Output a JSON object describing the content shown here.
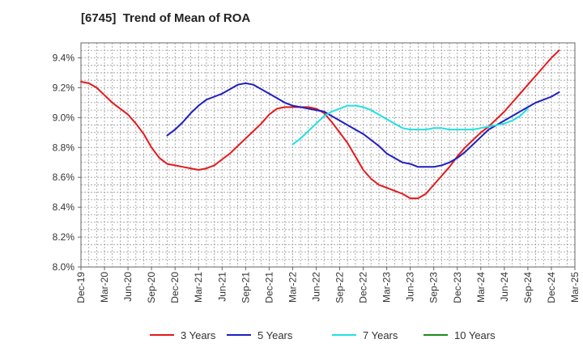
{
  "chart_data": {
    "type": "line",
    "title": "[6745]  Trend of Mean of ROA",
    "x_ticks": [
      "Dec-19",
      "Mar-20",
      "Jun-20",
      "Sep-20",
      "Dec-20",
      "Mar-21",
      "Jun-21",
      "Sep-21",
      "Dec-21",
      "Mar-22",
      "Jun-22",
      "Sep-22",
      "Dec-22",
      "Mar-23",
      "Jun-23",
      "Sep-23",
      "Dec-23",
      "Mar-24",
      "Jun-24",
      "Sep-24",
      "Dec-24",
      "Mar-25"
    ],
    "y_ticks": [
      "8.0%",
      "8.2%",
      "8.4%",
      "8.6%",
      "8.8%",
      "9.0%",
      "9.2%",
      "9.4%"
    ],
    "ylim": [
      8.0,
      9.5
    ],
    "grid": true,
    "legend_position": "bottom",
    "series": [
      {
        "name": "3 Years",
        "color": "#e31a1c",
        "values": [
          9.24,
          9.23,
          9.2,
          9.15,
          9.1,
          9.06,
          9.02,
          8.96,
          8.89,
          8.8,
          8.73,
          8.69,
          8.68,
          8.67,
          8.66,
          8.65,
          8.66,
          8.68,
          8.72,
          8.76,
          8.81,
          8.86,
          8.91,
          8.96,
          9.02,
          9.06,
          9.07,
          9.07,
          9.07,
          9.07,
          9.06,
          9.03,
          8.97,
          8.9,
          8.83,
          8.74,
          8.65,
          8.59,
          8.55,
          8.53,
          8.51,
          8.49,
          8.46,
          8.46,
          8.49,
          8.55,
          8.61,
          8.67,
          8.74,
          8.8,
          8.85,
          8.9,
          8.94,
          8.99,
          9.04,
          9.1,
          9.16,
          9.22,
          9.28,
          9.34,
          9.4,
          9.45
        ]
      },
      {
        "name": "5 Years",
        "color": "#1f1fbf",
        "values": [
          null,
          null,
          null,
          null,
          null,
          null,
          null,
          null,
          null,
          null,
          null,
          8.88,
          8.92,
          8.97,
          9.03,
          9.08,
          9.12,
          9.14,
          9.16,
          9.19,
          9.22,
          9.23,
          9.22,
          9.19,
          9.16,
          9.13,
          9.1,
          9.08,
          9.07,
          9.06,
          9.05,
          9.04,
          9.01,
          8.98,
          8.95,
          8.92,
          8.89,
          8.85,
          8.81,
          8.76,
          8.73,
          8.7,
          8.69,
          8.67,
          8.67,
          8.67,
          8.68,
          8.7,
          8.73,
          8.77,
          8.82,
          8.87,
          8.92,
          8.95,
          8.98,
          9.01,
          9.04,
          9.07,
          9.1,
          9.12,
          9.14,
          9.17
        ]
      },
      {
        "name": "7 Years",
        "color": "#22e0e0",
        "values": [
          null,
          null,
          null,
          null,
          null,
          null,
          null,
          null,
          null,
          null,
          null,
          null,
          null,
          null,
          null,
          null,
          null,
          null,
          null,
          null,
          null,
          null,
          null,
          null,
          null,
          null,
          null,
          8.82,
          8.86,
          8.91,
          8.96,
          9.01,
          9.04,
          9.06,
          9.08,
          9.08,
          9.07,
          9.05,
          9.02,
          8.99,
          8.96,
          8.93,
          8.92,
          8.92,
          8.92,
          8.93,
          8.93,
          8.92,
          8.92,
          8.92,
          8.92,
          8.93,
          8.94,
          8.95,
          8.96,
          8.98,
          9.01,
          9.06
        ]
      },
      {
        "name": "10 Years",
        "color": "#1a8c1a",
        "values": []
      }
    ]
  }
}
